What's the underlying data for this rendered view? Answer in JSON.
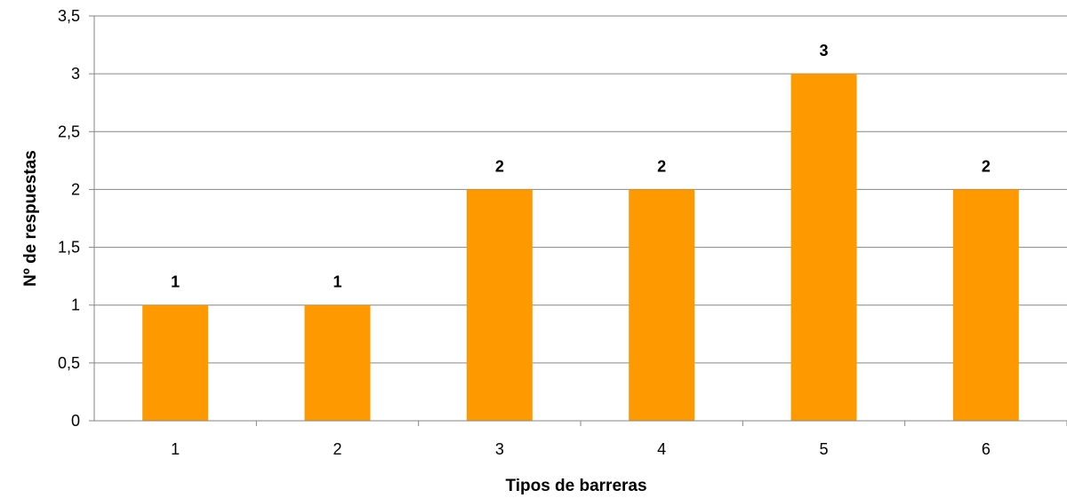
{
  "chart_data": {
    "type": "bar",
    "categories": [
      "1",
      "2",
      "3",
      "4",
      "5",
      "6"
    ],
    "values": [
      1,
      1,
      2,
      2,
      3,
      2
    ],
    "data_labels": [
      "1",
      "1",
      "2",
      "2",
      "3",
      "2"
    ],
    "title": "",
    "xlabel": "Tipos de barreras",
    "ylabel": "Nº de respuestas",
    "ylim": [
      0,
      3.5
    ],
    "yticks": [
      0,
      0.5,
      1,
      1.5,
      2,
      2.5,
      3,
      3.5
    ],
    "ytick_labels": [
      "0",
      "0,5",
      "1",
      "1,5",
      "2",
      "2,5",
      "3",
      "3,5"
    ],
    "grid": true,
    "legend": "none",
    "bar_color": "#FF9900"
  }
}
